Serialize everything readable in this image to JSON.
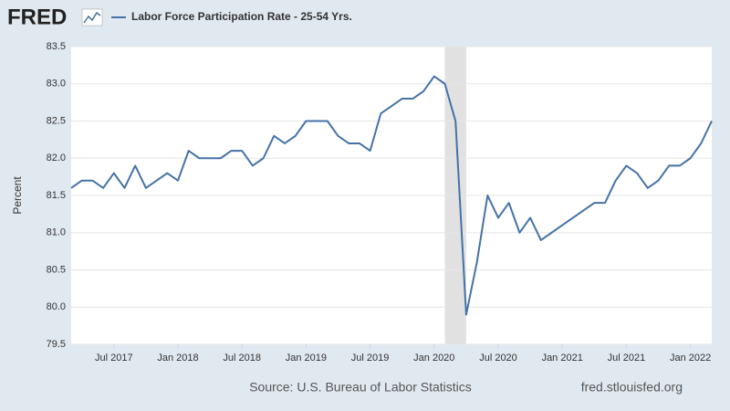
{
  "logo": "FRED",
  "chart_data": {
    "type": "line",
    "legend": "Labor Force Participation Rate - 25-54 Yrs.",
    "y_label": "Percent",
    "source": "Source: U.S. Bureau of Labor Statistics",
    "site": "fred.stlouisfed.org",
    "x": [
      "2017-03",
      "2017-04",
      "2017-05",
      "2017-06",
      "2017-07",
      "2017-08",
      "2017-09",
      "2017-10",
      "2017-11",
      "2017-12",
      "2018-01",
      "2018-02",
      "2018-03",
      "2018-04",
      "2018-05",
      "2018-06",
      "2018-07",
      "2018-08",
      "2018-09",
      "2018-10",
      "2018-11",
      "2018-12",
      "2019-01",
      "2019-02",
      "2019-03",
      "2019-04",
      "2019-05",
      "2019-06",
      "2019-07",
      "2019-08",
      "2019-09",
      "2019-10",
      "2019-11",
      "2019-12",
      "2020-01",
      "2020-02",
      "2020-03",
      "2020-04",
      "2020-05",
      "2020-06",
      "2020-07",
      "2020-08",
      "2020-09",
      "2020-10",
      "2020-11",
      "2020-12",
      "2021-01",
      "2021-02",
      "2021-03",
      "2021-04",
      "2021-05",
      "2021-06",
      "2021-07",
      "2021-08",
      "2021-09",
      "2021-10",
      "2021-11",
      "2021-12",
      "2022-01",
      "2022-02",
      "2022-03"
    ],
    "series": [
      {
        "name": "Labor Force Participation Rate - 25-54 Yrs.",
        "color": "#4572a7",
        "values": [
          81.6,
          81.7,
          81.7,
          81.6,
          81.8,
          81.6,
          81.9,
          81.6,
          81.7,
          81.8,
          81.7,
          82.1,
          82.0,
          82.0,
          82.0,
          82.1,
          82.1,
          81.9,
          82.0,
          82.3,
          82.2,
          82.3,
          82.5,
          82.5,
          82.5,
          82.3,
          82.2,
          82.2,
          82.1,
          82.6,
          82.7,
          82.8,
          82.8,
          82.9,
          83.1,
          83.0,
          82.5,
          79.9,
          80.6,
          81.5,
          81.2,
          81.4,
          81.0,
          81.2,
          80.9,
          81.0,
          81.1,
          81.2,
          81.3,
          81.4,
          81.4,
          81.7,
          81.9,
          81.8,
          81.6,
          81.7,
          81.9,
          81.9,
          82.0,
          82.2,
          82.5
        ]
      }
    ],
    "recession": [
      "2020-02",
      "2020-04"
    ],
    "recession_color": "#e1e1e1",
    "xlim": [
      "2017-03",
      "2022-03"
    ],
    "xticks": [
      {
        "value": "2017-07",
        "label": "Jul 2017"
      },
      {
        "value": "2018-01",
        "label": "Jan 2018"
      },
      {
        "value": "2018-07",
        "label": "Jul 2018"
      },
      {
        "value": "2019-01",
        "label": "Jan 2019"
      },
      {
        "value": "2019-07",
        "label": "Jul 2019"
      },
      {
        "value": "2020-01",
        "label": "Jan 2020"
      },
      {
        "value": "2020-07",
        "label": "Jul 2020"
      },
      {
        "value": "2021-01",
        "label": "Jan 2021"
      },
      {
        "value": "2021-07",
        "label": "Jul 2021"
      },
      {
        "value": "2022-01",
        "label": "Jan 2022"
      }
    ],
    "ylim": [
      79.5,
      83.5
    ],
    "yticks": [
      79.5,
      {
        "value": 80,
        "label": "80.0"
      },
      80.5,
      {
        "value": 81,
        "label": "81.0"
      },
      81.5,
      {
        "value": 82,
        "label": "82.0"
      },
      82.5,
      {
        "value": 83,
        "label": "83.0"
      },
      83.5
    ],
    "grid": true
  }
}
